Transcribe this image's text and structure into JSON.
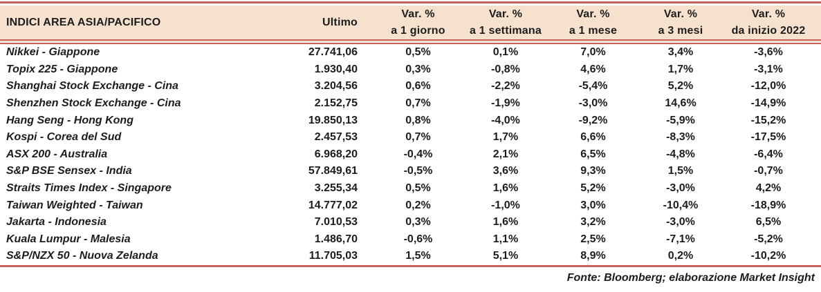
{
  "colors": {
    "rule_red": "#c9605a",
    "header_band": "#f5e1ce",
    "text": "#1c1c1c",
    "background": "#ffffff"
  },
  "header": {
    "col_name": "INDICI AREA ASIA/PACIFICO",
    "col_ultimo": "Ultimo",
    "var_cols": [
      {
        "line1": "Var. %",
        "line2": "a 1 giorno"
      },
      {
        "line1": "Var. %",
        "line2": "a 1 settimana"
      },
      {
        "line1": "Var. %",
        "line2": "a 1 mese"
      },
      {
        "line1": "Var. %",
        "line2": "a 3 mesi"
      },
      {
        "line1": "Var. %",
        "line2": "da inizio 2022"
      }
    ]
  },
  "chart_data": {
    "type": "table",
    "title": "INDICI AREA ASIA/PACIFICO",
    "columns": [
      "INDICI AREA ASIA/PACIFICO",
      "Ultimo",
      "Var. % a 1 giorno",
      "Var. % a 1 settimana",
      "Var. % a 1 mese",
      "Var. % a 3 mesi",
      "Var. % da inizio 2022"
    ],
    "rows": [
      [
        "Nikkei - Giappone",
        "27.741,06",
        "0,5%",
        "0,1%",
        "7,0%",
        "3,4%",
        "-3,6%"
      ],
      [
        "Topix 225 - Giappone",
        "1.930,40",
        "0,3%",
        "-0,8%",
        "4,6%",
        "1,7%",
        "-3,1%"
      ],
      [
        "Shanghai Stock Exchange - Cina",
        "3.204,56",
        "0,6%",
        "-2,2%",
        "-5,4%",
        "5,2%",
        "-12,0%"
      ],
      [
        "Shenzhen Stock Exchange - Cina",
        "2.152,75",
        "0,7%",
        "-1,9%",
        "-3,0%",
        "14,6%",
        "-14,9%"
      ],
      [
        "Hang Seng - Hong Kong",
        "19.850,13",
        "0,8%",
        "-4,0%",
        "-9,2%",
        "-5,9%",
        "-15,2%"
      ],
      [
        "Kospi - Corea del Sud",
        "2.457,53",
        "0,7%",
        "1,7%",
        "6,6%",
        "-8,3%",
        "-17,5%"
      ],
      [
        "ASX 200 - Australia",
        "6.968,20",
        "-0,4%",
        "2,1%",
        "6,5%",
        "-4,8%",
        "-6,4%"
      ],
      [
        "S&P BSE Sensex - India",
        "57.849,61",
        "-0,5%",
        "3,6%",
        "9,3%",
        "1,5%",
        "-0,7%"
      ],
      [
        "Straits Times Index - Singapore",
        "3.255,34",
        "0,5%",
        "1,6%",
        "5,2%",
        "-3,0%",
        "4,2%"
      ],
      [
        "Taiwan Weighted - Taiwan",
        "14.777,02",
        "0,2%",
        "-1,0%",
        "3,0%",
        "-10,4%",
        "-18,9%"
      ],
      [
        "Jakarta - Indonesia",
        "7.010,53",
        "0,3%",
        "1,6%",
        "3,2%",
        "-3,0%",
        "6,5%"
      ],
      [
        "Kuala Lumpur - Malesia",
        "1.486,70",
        "-0,6%",
        "1,1%",
        "2,5%",
        "-7,1%",
        "-5,2%"
      ],
      [
        "S&P/NZX 50 - Nuova Zelanda",
        "11.705,03",
        "1,5%",
        "5,1%",
        "8,9%",
        "0,2%",
        "-10,2%"
      ]
    ],
    "source": "Fonte: Bloomberg; elaborazione Market Insight"
  },
  "footer": {
    "source": "Fonte: Bloomberg; elaborazione Market Insight"
  }
}
